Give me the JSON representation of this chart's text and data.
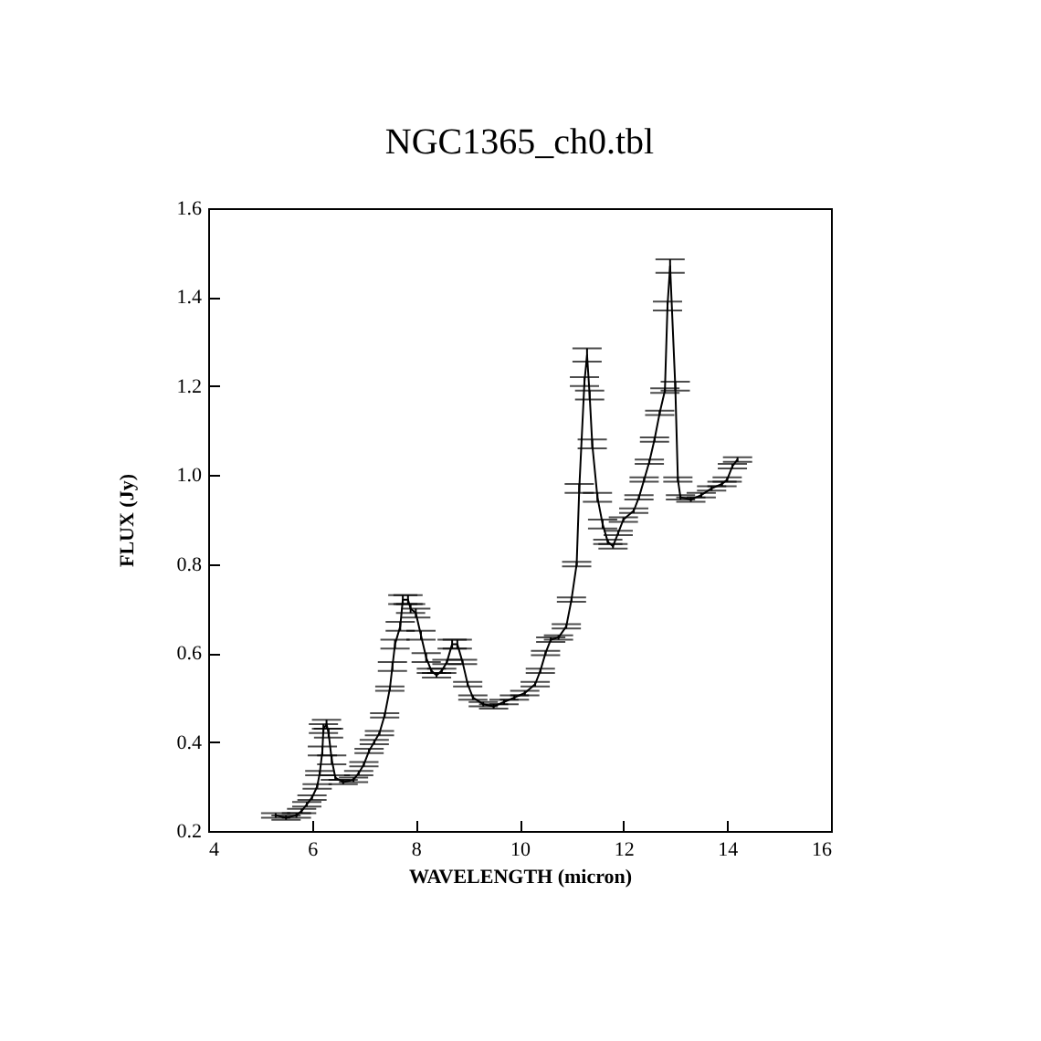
{
  "chart_data": {
    "type": "line",
    "title": "NGC1365_ch0.tbl",
    "xlabel": "WAVELENGTH (micron)",
    "ylabel": "FLUX (Jy)",
    "x": [
      5.3,
      5.5,
      5.7,
      5.8,
      5.9,
      6.0,
      6.1,
      6.15,
      6.2,
      6.22,
      6.28,
      6.32,
      6.38,
      6.45,
      6.6,
      6.8,
      6.9,
      7.0,
      7.1,
      7.2,
      7.3,
      7.4,
      7.5,
      7.55,
      7.6,
      7.7,
      7.75,
      7.85,
      7.9,
      8.0,
      8.1,
      8.2,
      8.3,
      8.4,
      8.5,
      8.6,
      8.7,
      8.8,
      8.9,
      9.0,
      9.1,
      9.3,
      9.5,
      9.7,
      9.9,
      10.1,
      10.3,
      10.4,
      10.5,
      10.6,
      10.75,
      10.9,
      11.0,
      11.1,
      11.15,
      11.25,
      11.3,
      11.35,
      11.4,
      11.5,
      11.6,
      11.7,
      11.8,
      11.9,
      12.0,
      12.2,
      12.3,
      12.4,
      12.5,
      12.6,
      12.7,
      12.8,
      12.85,
      12.9,
      13.0,
      13.05,
      13.1,
      13.3,
      13.5,
      13.7,
      13.9,
      14.0,
      14.1,
      14.2
    ],
    "values": [
      0.235,
      0.23,
      0.235,
      0.245,
      0.26,
      0.275,
      0.3,
      0.33,
      0.38,
      0.43,
      0.44,
      0.42,
      0.36,
      0.32,
      0.31,
      0.315,
      0.33,
      0.35,
      0.38,
      0.4,
      0.42,
      0.46,
      0.52,
      0.57,
      0.62,
      0.66,
      0.72,
      0.72,
      0.7,
      0.69,
      0.64,
      0.59,
      0.56,
      0.55,
      0.56,
      0.58,
      0.62,
      0.62,
      0.58,
      0.53,
      0.5,
      0.485,
      0.48,
      0.49,
      0.5,
      0.51,
      0.53,
      0.56,
      0.6,
      0.63,
      0.635,
      0.66,
      0.72,
      0.8,
      0.97,
      1.21,
      1.27,
      1.18,
      1.07,
      0.95,
      0.89,
      0.85,
      0.84,
      0.87,
      0.9,
      0.92,
      0.95,
      0.99,
      1.03,
      1.08,
      1.14,
      1.19,
      1.38,
      1.47,
      1.2,
      0.99,
      0.95,
      0.945,
      0.955,
      0.97,
      0.98,
      0.99,
      1.02,
      1.035
    ],
    "errors": [
      0.005,
      0.005,
      0.005,
      0.005,
      0.005,
      0.005,
      0.005,
      0.005,
      0.01,
      0.01,
      0.01,
      0.01,
      0.01,
      0.005,
      0.005,
      0.005,
      0.005,
      0.005,
      0.005,
      0.005,
      0.005,
      0.005,
      0.005,
      0.01,
      0.01,
      0.01,
      0.01,
      0.01,
      0.01,
      0.01,
      0.01,
      0.01,
      0.005,
      0.005,
      0.005,
      0.005,
      0.01,
      0.01,
      0.005,
      0.005,
      0.005,
      0.005,
      0.005,
      0.005,
      0.005,
      0.005,
      0.005,
      0.005,
      0.005,
      0.005,
      0.005,
      0.005,
      0.005,
      0.005,
      0.01,
      0.01,
      0.015,
      0.01,
      0.01,
      0.01,
      0.01,
      0.005,
      0.005,
      0.005,
      0.005,
      0.005,
      0.005,
      0.005,
      0.005,
      0.005,
      0.005,
      0.005,
      0.01,
      0.015,
      0.01,
      0.005,
      0.005,
      0.005,
      0.005,
      0.005,
      0.005,
      0.005,
      0.005,
      0.005
    ],
    "color": "#000000",
    "marker": "none",
    "line_style": "solid",
    "grid": false,
    "xlim": [
      4,
      16
    ],
    "xticks": [
      4,
      6,
      8,
      10,
      12,
      14,
      16
    ],
    "ylim": [
      0.2,
      1.6
    ],
    "yticks": [
      0.2,
      0.4,
      0.6,
      0.8,
      {
        "value": 1,
        "label": "1.0"
      },
      1.2,
      1.4,
      1.6
    ]
  }
}
